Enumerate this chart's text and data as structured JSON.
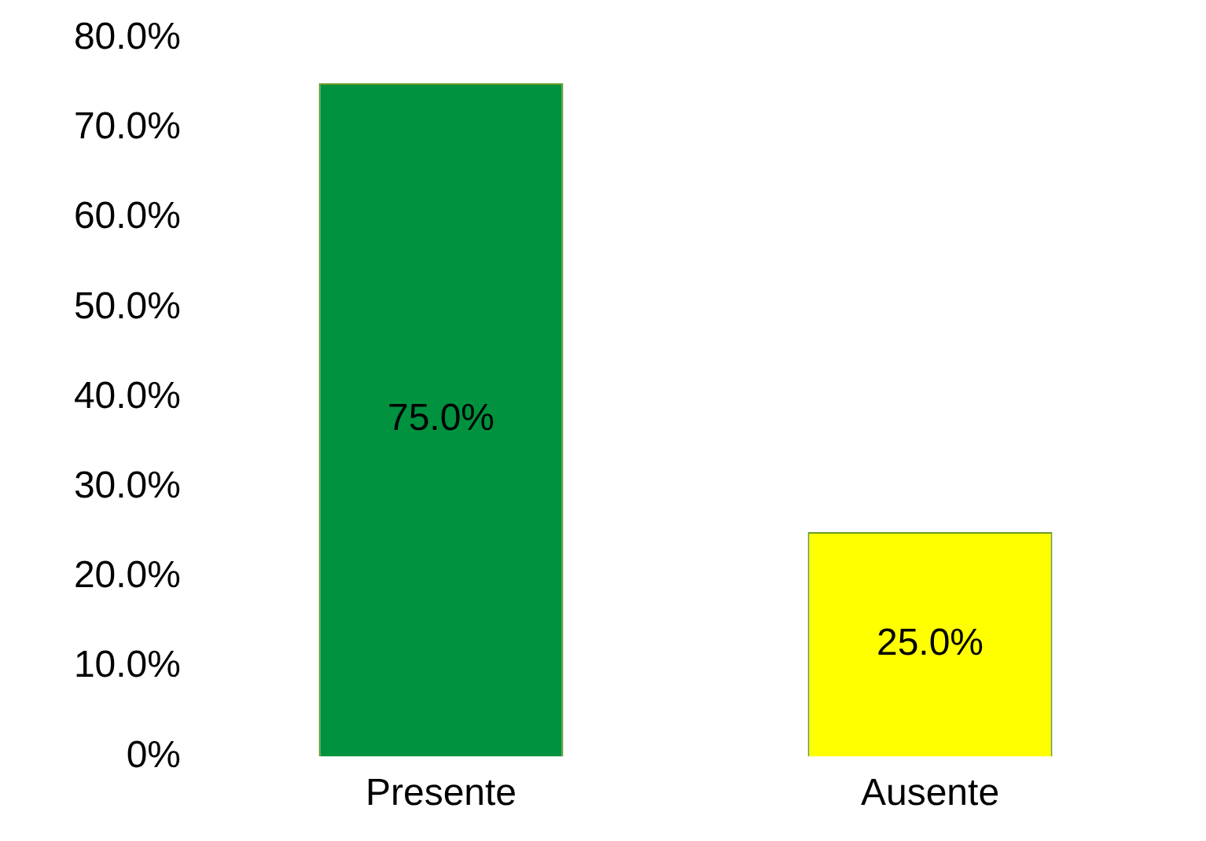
{
  "chart_data": {
    "type": "bar",
    "categories": [
      "Presente",
      "Ausente"
    ],
    "values": [
      75,
      25
    ],
    "colors": [
      "#00923f",
      "#ffff00"
    ],
    "value_labels": [
      "75.0%",
      "25.0%"
    ],
    "ylim": [
      0,
      80
    ],
    "yticks": [
      {
        "value": 0,
        "label": "0%"
      },
      {
        "value": 10,
        "label": "10.0%"
      },
      {
        "value": 20,
        "label": "20.0%"
      },
      {
        "value": 30,
        "label": "30.0%"
      },
      {
        "value": 40,
        "label": "40.0%"
      },
      {
        "value": 50,
        "label": "50.0%"
      },
      {
        "value": 60,
        "label": "60.0%"
      },
      {
        "value": 70,
        "label": "70.0%"
      },
      {
        "value": 80,
        "label": "80.0%"
      }
    ],
    "grid": false,
    "legend": false
  }
}
